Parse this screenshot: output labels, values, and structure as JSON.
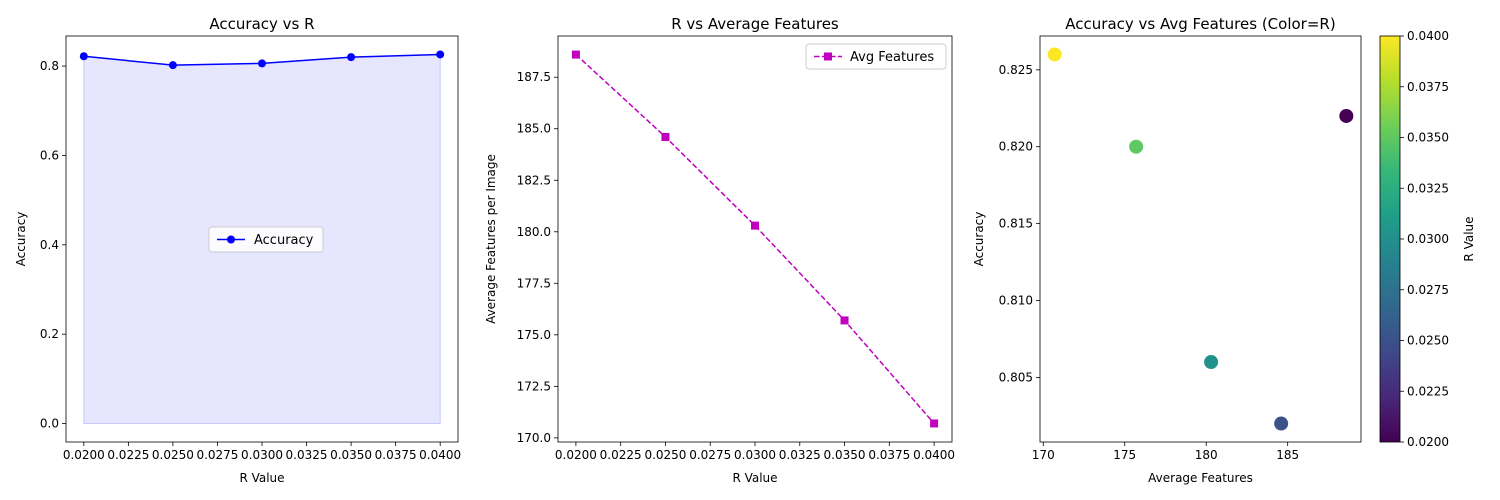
{
  "chart_data": [
    {
      "type": "line",
      "title": "Accuracy vs R",
      "xlabel": "R Value",
      "ylabel": "Accuracy",
      "x": [
        0.02,
        0.025,
        0.03,
        0.035,
        0.04
      ],
      "series": [
        {
          "name": "Accuracy",
          "values": [
            0.822,
            0.802,
            0.806,
            0.82,
            0.826
          ],
          "color": "#0000ff",
          "marker": "circle",
          "fill": "#e3e3ff"
        }
      ],
      "xlim": [
        0.019,
        0.041
      ],
      "ylim": [
        -0.0413,
        0.8673
      ],
      "xticks": [
        0.02,
        0.0225,
        0.025,
        0.0275,
        0.03,
        0.0325,
        0.035,
        0.0375,
        0.04
      ],
      "xtick_labels": [
        "0.0200",
        "0.0225",
        "0.0250",
        "0.0275",
        "0.0300",
        "0.0325",
        "0.0350",
        "0.0375",
        "0.0400"
      ],
      "yticks": [
        0.0,
        0.2,
        0.4,
        0.6,
        0.8
      ],
      "ytick_labels": [
        "0.0",
        "0.2",
        "0.4",
        "0.6",
        "0.8"
      ],
      "legend": "center right",
      "grid": false
    },
    {
      "type": "line",
      "title": "R vs Average Features",
      "xlabel": "R Value",
      "ylabel": "Average Features per Image",
      "x": [
        0.02,
        0.025,
        0.03,
        0.035,
        0.04
      ],
      "series": [
        {
          "name": "Avg Features",
          "values": [
            188.6,
            184.6,
            180.3,
            175.7,
            170.7
          ],
          "color": "#bf00bf",
          "marker": "square",
          "dashed": true
        }
      ],
      "xlim": [
        0.019,
        0.041
      ],
      "ylim": [
        169.8,
        189.5
      ],
      "xticks": [
        0.02,
        0.0225,
        0.025,
        0.0275,
        0.03,
        0.0325,
        0.035,
        0.0375,
        0.04
      ],
      "xtick_labels": [
        "0.0200",
        "0.0225",
        "0.0250",
        "0.0275",
        "0.0300",
        "0.0325",
        "0.0350",
        "0.0375",
        "0.0400"
      ],
      "yticks": [
        170.0,
        172.5,
        175.0,
        177.5,
        180.0,
        182.5,
        185.0,
        187.5
      ],
      "ytick_labels": [
        "170.0",
        "172.5",
        "175.0",
        "177.5",
        "180.0",
        "182.5",
        "185.0",
        "187.5"
      ],
      "legend": "upper right",
      "grid": false
    },
    {
      "type": "scatter",
      "title": "Accuracy vs Avg Features (Color=R)",
      "xlabel": "Average Features",
      "ylabel": "Accuracy",
      "points": [
        {
          "x": 188.6,
          "y": 0.822,
          "r": 0.02,
          "color": "#440154"
        },
        {
          "x": 184.6,
          "y": 0.802,
          "r": 0.025,
          "color": "#3b528b"
        },
        {
          "x": 180.3,
          "y": 0.806,
          "r": 0.03,
          "color": "#21918c"
        },
        {
          "x": 175.7,
          "y": 0.82,
          "r": 0.035,
          "color": "#5ec962"
        },
        {
          "x": 170.7,
          "y": 0.826,
          "r": 0.04,
          "color": "#fde725"
        }
      ],
      "xlim": [
        169.8,
        189.5
      ],
      "ylim": [
        0.8008,
        0.8272
      ],
      "xticks": [
        170,
        175,
        180,
        185
      ],
      "xtick_labels": [
        "170",
        "175",
        "180",
        "185"
      ],
      "yticks": [
        0.805,
        0.81,
        0.815,
        0.82,
        0.825
      ],
      "ytick_labels": [
        "0.805",
        "0.810",
        "0.815",
        "0.820",
        "0.825"
      ],
      "colorbar": {
        "label": "R Value",
        "range": [
          0.02,
          0.04
        ],
        "ticks": [
          0.02,
          0.0225,
          0.025,
          0.0275,
          0.03,
          0.0325,
          0.035,
          0.0375,
          0.04
        ],
        "tick_labels": [
          "0.0200",
          "0.0225",
          "0.0250",
          "0.0275",
          "0.0300",
          "0.0325",
          "0.0350",
          "0.0375",
          "0.0400"
        ],
        "colormap": "viridis",
        "colors": [
          "#440154",
          "#482878",
          "#3e4989",
          "#31688e",
          "#26828e",
          "#1f9e89",
          "#35b779",
          "#6ece58",
          "#b5de2b",
          "#fde725"
        ]
      },
      "grid": false
    }
  ]
}
